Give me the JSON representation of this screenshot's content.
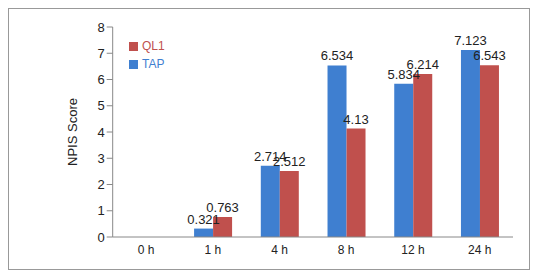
{
  "chart_data": {
    "type": "bar",
    "y_label": "NPIS Score",
    "categories": [
      "0 h",
      "1 h",
      "4 h",
      "8 h",
      "12 h",
      "24 h"
    ],
    "series": [
      {
        "name": "TAP",
        "color": "#3f7fd0",
        "values": [
          0,
          0.321,
          2.714,
          6.534,
          5.834,
          7.123
        ]
      },
      {
        "name": "QL1",
        "color": "#c0504d",
        "values": [
          0,
          0.763,
          2.512,
          4.13,
          6.214,
          6.543
        ]
      }
    ],
    "ylim": [
      0,
      8
    ],
    "yticks": [
      0,
      1,
      2,
      3,
      4,
      5,
      6,
      7,
      8
    ],
    "grid": false,
    "legend": "upper left",
    "data_labels": true
  }
}
